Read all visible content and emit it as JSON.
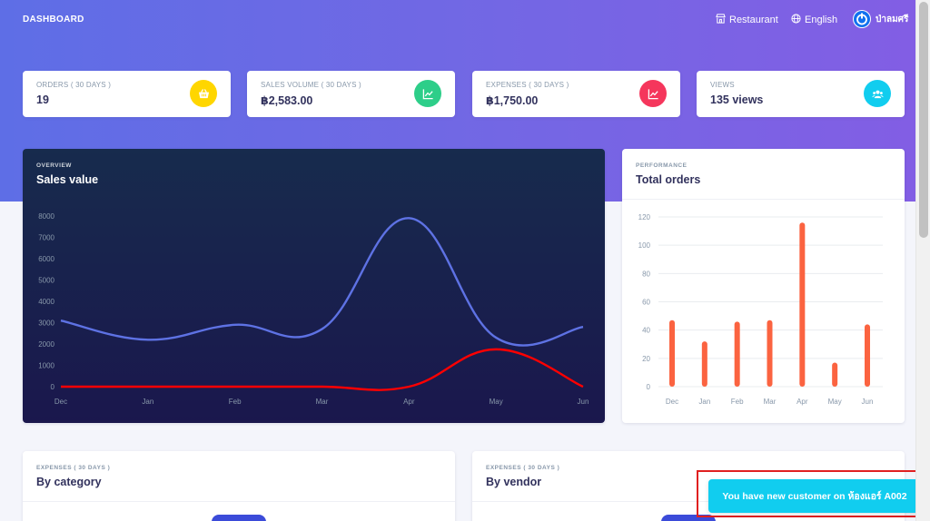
{
  "topbar": {
    "brand": "DASHBOARD",
    "restaurant": "Restaurant",
    "language": "English",
    "user_name": "ป่าลมศรี"
  },
  "stats": [
    {
      "label": "ORDERS ( 30 DAYS )",
      "value": "19",
      "icon": "basket-icon",
      "color": "#ffd600"
    },
    {
      "label": "SALES VOLUME ( 30 DAYS )",
      "value": "฿2,583.00",
      "icon": "chart-line-icon",
      "color": "#2dce89"
    },
    {
      "label": "EXPENSES ( 30 DAYS )",
      "value": "฿1,750.00",
      "icon": "chart-line-icon",
      "color": "#f5365c"
    },
    {
      "label": "VIEWS",
      "value": "135 views",
      "icon": "users-icon",
      "color": "#11cdef"
    }
  ],
  "chart_data": [
    {
      "type": "line",
      "kicker": "OVERVIEW",
      "title": "Sales value",
      "categories": [
        "Dec",
        "Jan",
        "Feb",
        "Mar",
        "Apr",
        "May",
        "Jun"
      ],
      "y_ticks": [
        "0",
        "1000",
        "2000",
        "3000",
        "4000",
        "5000",
        "6000",
        "7000",
        "8000"
      ],
      "ylim": [
        0,
        8000
      ],
      "series": [
        {
          "values": [
            3100,
            2200,
            2900,
            2700,
            7900,
            2300,
            2800
          ],
          "color": "#5e72e4"
        },
        {
          "values": [
            0,
            0,
            0,
            0,
            0,
            1750,
            0
          ],
          "color": "#ff0000"
        }
      ]
    },
    {
      "type": "bar",
      "kicker": "PERFORMANCE",
      "title": "Total orders",
      "categories": [
        "Dec",
        "Jan",
        "Feb",
        "Mar",
        "Apr",
        "May",
        "Jun"
      ],
      "y_ticks": [
        "0",
        "20",
        "40",
        "60",
        "80",
        "100",
        "120"
      ],
      "ylim": [
        0,
        120
      ],
      "values": [
        47,
        32,
        46,
        47,
        116,
        17,
        44
      ],
      "color": "#fb6340"
    }
  ],
  "bottom_cards": [
    {
      "kicker": "EXPENSES ( 30 DAYS )",
      "title": "By category"
    },
    {
      "kicker": "EXPENSES ( 30 DAYS )",
      "title": "By vendor"
    }
  ],
  "toast": {
    "message": "You have new customer on ห้องแอร์ A002"
  }
}
